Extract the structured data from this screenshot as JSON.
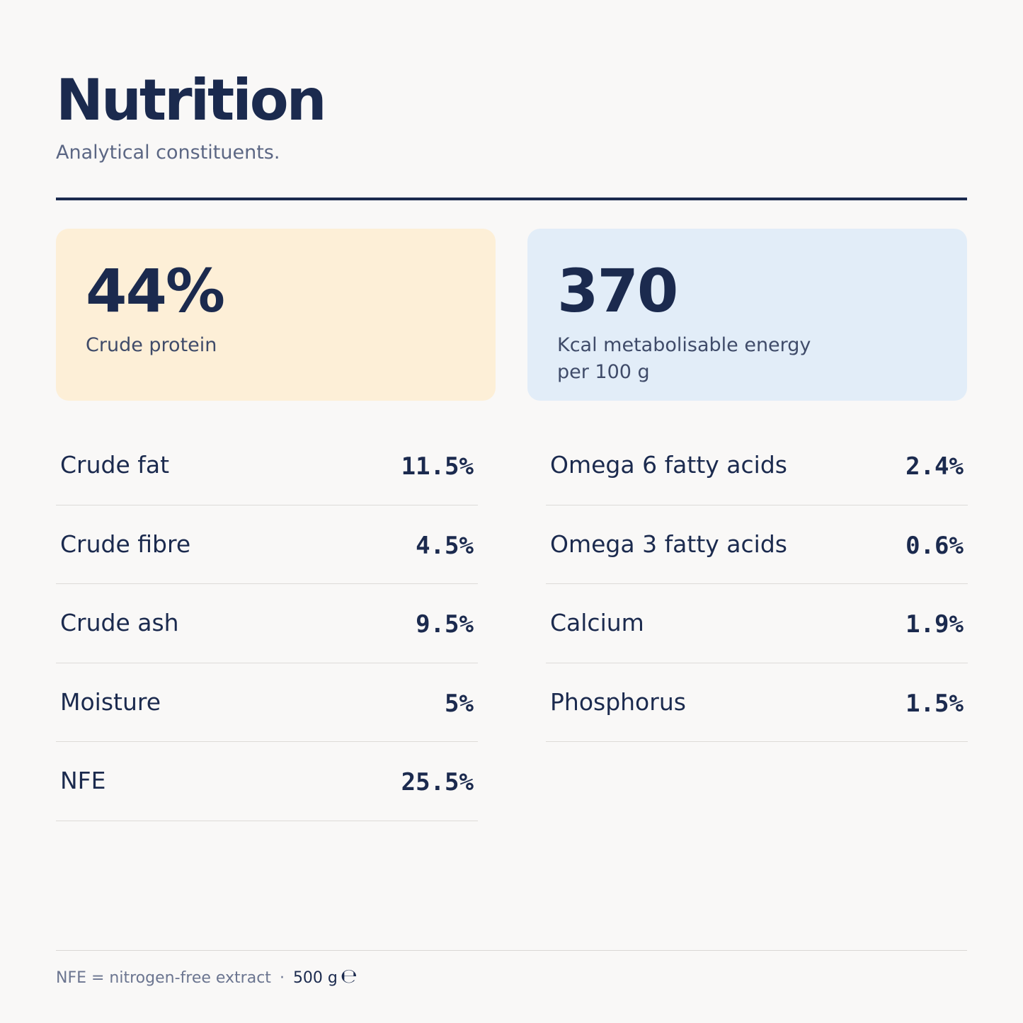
{
  "header": {
    "title": "Nutrition",
    "subtitle": "Analytical constituents."
  },
  "highlights": {
    "protein": {
      "value": "44%",
      "label": "Crude protein"
    },
    "energy": {
      "value": "370",
      "label_line1": "Kcal metabolisable energy",
      "label_line2": "per 100 g"
    }
  },
  "left_rows": [
    {
      "label": "Crude fat",
      "value": "11.5%"
    },
    {
      "label": "Crude fibre",
      "value": "4.5%"
    },
    {
      "label": "Crude ash",
      "value": "9.5%"
    },
    {
      "label": "Moisture",
      "value": "5%"
    },
    {
      "label": "NFE",
      "value": "25.5%"
    }
  ],
  "right_rows": [
    {
      "label": "Omega 6 fatty acids",
      "value": "2.4%"
    },
    {
      "label": "Omega 3 fatty acids",
      "value": "0.6%"
    },
    {
      "label": "Calcium",
      "value": "1.9%"
    },
    {
      "label": "Phosphorus",
      "value": "1.5%"
    }
  ],
  "footer": {
    "note": "NFE = nitrogen-free extract",
    "separator": "·",
    "weight": "500 g",
    "estimated_mark": "℮"
  },
  "colors": {
    "ink": "#1b2a4e",
    "protein_card": "#fdefd7",
    "energy_card": "#e2edf8",
    "background": "#f9f8f7"
  }
}
